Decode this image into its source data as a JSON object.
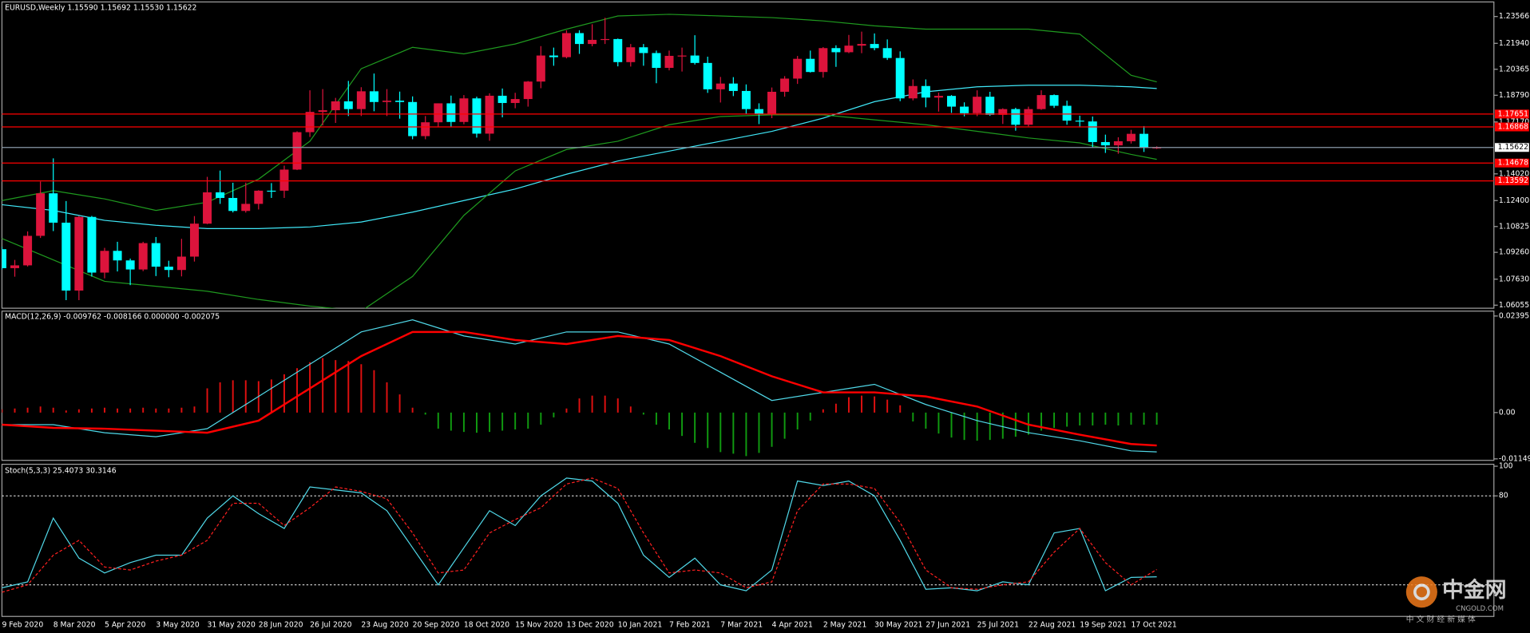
{
  "chart_data": [
    {
      "type": "candlestick",
      "title": "EURUSD,Weekly  1.15590 1.15692 1.15530 1.15622",
      "categories": [
        "9 Feb 2020",
        null,
        null,
        null,
        "8 Mar 2020",
        null,
        null,
        null,
        "5 Apr 2020",
        null,
        null,
        null,
        "3 May 2020",
        null,
        null,
        null,
        "31 May 2020",
        null,
        null,
        null,
        "28 Jun 2020",
        null,
        null,
        null,
        "26 Jul 2020",
        null,
        null,
        null,
        "23 Aug 2020",
        null,
        null,
        null,
        "20 Sep 2020",
        null,
        null,
        null,
        "18 Oct 2020",
        null,
        null,
        null,
        "15 Nov 2020",
        null,
        null,
        null,
        "13 Dec 2020",
        null,
        null,
        null,
        "10 Jan 2021",
        null,
        null,
        null,
        "7 Feb 2021",
        null,
        null,
        null,
        "7 Mar 2021",
        null,
        null,
        null,
        "4 Apr 2021",
        null,
        null,
        null,
        "2 May 2021",
        null,
        null,
        null,
        "30 May 2021",
        null,
        null,
        null,
        "27 Jun 2021",
        null,
        null,
        null,
        "25 Jul 2021",
        null,
        null,
        null,
        "22 Aug 2021",
        null,
        null,
        null,
        "19 Sep 2021",
        null,
        null,
        null,
        "17 Oct 2021",
        null,
        null
      ],
      "ohlc": [
        [
          1.0945,
          1.096,
          1.082,
          1.083
        ],
        [
          1.083,
          1.088,
          1.0778,
          1.0847
        ],
        [
          1.0847,
          1.1053,
          1.084,
          1.1026
        ],
        [
          1.1026,
          1.1355,
          1.1013,
          1.1284
        ],
        [
          1.1284,
          1.1496,
          1.1055,
          1.1106
        ],
        [
          1.1106,
          1.1237,
          1.0636,
          1.0694
        ],
        [
          1.0694,
          1.1147,
          1.0636,
          1.1141
        ],
        [
          1.1141,
          1.1147,
          1.0779,
          1.0803
        ],
        [
          1.0803,
          1.0953,
          1.0768,
          1.0935
        ],
        [
          1.0935,
          1.099,
          1.081,
          1.0877
        ],
        [
          1.0877,
          1.0888,
          1.0727,
          1.0822
        ],
        [
          1.0822,
          1.099,
          1.0812,
          1.0982
        ],
        [
          1.0982,
          1.1019,
          1.0782,
          1.0839
        ],
        [
          1.0839,
          1.0875,
          1.0775,
          1.0819
        ],
        [
          1.0819,
          1.1008,
          1.078,
          1.09
        ],
        [
          1.09,
          1.1146,
          1.087,
          1.11
        ],
        [
          1.11,
          1.1384,
          1.1097,
          1.129
        ],
        [
          1.129,
          1.1422,
          1.122,
          1.1256
        ],
        [
          1.1256,
          1.1348,
          1.1168,
          1.1177
        ],
        [
          1.1177,
          1.1349,
          1.1167,
          1.122
        ],
        [
          1.122,
          1.1303,
          1.1186,
          1.13
        ],
        [
          1.13,
          1.1346,
          1.1256,
          1.13
        ],
        [
          1.13,
          1.1452,
          1.1256,
          1.1428
        ],
        [
          1.1428,
          1.166,
          1.1425,
          1.1655
        ],
        [
          1.1655,
          1.1909,
          1.1626,
          1.1778
        ],
        [
          1.1778,
          1.1916,
          1.1696,
          1.1788
        ],
        [
          1.1788,
          1.1863,
          1.1711,
          1.1842
        ],
        [
          1.1842,
          1.1966,
          1.1753,
          1.1795
        ],
        [
          1.1795,
          1.1928,
          1.1753,
          1.1903
        ],
        [
          1.1903,
          1.2011,
          1.1782,
          1.1838
        ],
        [
          1.1838,
          1.1916,
          1.1753,
          1.1846
        ],
        [
          1.1846,
          1.1901,
          1.1737,
          1.1838
        ],
        [
          1.1838,
          1.1872,
          1.1612,
          1.1631
        ],
        [
          1.1631,
          1.1753,
          1.1612,
          1.1715
        ],
        [
          1.1715,
          1.183,
          1.1686,
          1.183
        ],
        [
          1.183,
          1.1877,
          1.1689,
          1.1717
        ],
        [
          1.1717,
          1.188,
          1.1703,
          1.186
        ],
        [
          1.186,
          1.187,
          1.1622,
          1.1646
        ],
        [
          1.1646,
          1.1891,
          1.1603,
          1.1876
        ],
        [
          1.1876,
          1.192,
          1.1745,
          1.1832
        ],
        [
          1.1832,
          1.1894,
          1.18,
          1.1856
        ],
        [
          1.1856,
          1.1965,
          1.181,
          1.1962
        ],
        [
          1.1962,
          1.2177,
          1.1922,
          1.212
        ],
        [
          1.212,
          1.2168,
          1.2058,
          1.211
        ],
        [
          1.211,
          1.2273,
          1.2103,
          1.2256
        ],
        [
          1.2256,
          1.2273,
          1.213,
          1.219
        ],
        [
          1.219,
          1.231,
          1.2176,
          1.2215
        ],
        [
          1.2215,
          1.2349,
          1.219,
          1.222
        ],
        [
          1.222,
          1.2223,
          1.2054,
          1.208
        ],
        [
          1.208,
          1.219,
          1.2053,
          1.217
        ],
        [
          1.217,
          1.219,
          1.2058,
          1.2135
        ],
        [
          1.2135,
          1.215,
          1.1952,
          1.2045
        ],
        [
          1.2045,
          1.215,
          1.203,
          1.2118
        ],
        [
          1.2118,
          1.2168,
          1.2023,
          1.212
        ],
        [
          1.212,
          1.2243,
          1.2065,
          1.2075
        ],
        [
          1.2075,
          1.2113,
          1.1893,
          1.1915
        ],
        [
          1.1915,
          1.199,
          1.1835,
          1.195
        ],
        [
          1.195,
          1.1989,
          1.1874,
          1.1905
        ],
        [
          1.1905,
          1.1945,
          1.1762,
          1.1795
        ],
        [
          1.1795,
          1.183,
          1.1704,
          1.1763
        ],
        [
          1.1763,
          1.1926,
          1.174,
          1.19
        ],
        [
          1.19,
          1.1995,
          1.187,
          1.198
        ],
        [
          1.198,
          1.2117,
          1.1948,
          1.21
        ],
        [
          1.21,
          1.215,
          1.2017,
          1.202
        ],
        [
          1.202,
          1.2171,
          1.1986,
          1.2165
        ],
        [
          1.2165,
          1.2182,
          1.2051,
          1.214
        ],
        [
          1.214,
          1.2245,
          1.2134,
          1.218
        ],
        [
          1.218,
          1.2265,
          1.2134,
          1.219
        ],
        [
          1.219,
          1.2254,
          1.2152,
          1.2165
        ],
        [
          1.2165,
          1.2218,
          1.2093,
          1.2105
        ],
        [
          1.2105,
          1.2145,
          1.1843,
          1.186
        ],
        [
          1.186,
          1.1975,
          1.1848,
          1.1935
        ],
        [
          1.1935,
          1.1975,
          1.1806,
          1.1865
        ],
        [
          1.1865,
          1.1895,
          1.178,
          1.1875
        ],
        [
          1.1875,
          1.188,
          1.1772,
          1.181
        ],
        [
          1.181,
          1.1836,
          1.1751,
          1.177
        ],
        [
          1.177,
          1.1909,
          1.1752,
          1.187
        ],
        [
          1.187,
          1.19,
          1.1754,
          1.176
        ],
        [
          1.176,
          1.18,
          1.1705,
          1.1795
        ],
        [
          1.1795,
          1.1803,
          1.1664,
          1.17
        ],
        [
          1.17,
          1.181,
          1.169,
          1.1795
        ],
        [
          1.1795,
          1.1909,
          1.179,
          1.188
        ],
        [
          1.188,
          1.1884,
          1.1802,
          1.1815
        ],
        [
          1.1815,
          1.1846,
          1.17,
          1.1725
        ],
        [
          1.1725,
          1.1755,
          1.1684,
          1.172
        ],
        [
          1.172,
          1.175,
          1.1563,
          1.1595
        ],
        [
          1.1595,
          1.164,
          1.1529,
          1.1575
        ],
        [
          1.1575,
          1.1624,
          1.1524,
          1.16
        ],
        [
          1.16,
          1.1669,
          1.1586,
          1.1645
        ],
        [
          1.1645,
          1.1692,
          1.1535,
          1.156
        ],
        [
          1.1559,
          1.15692,
          1.1553,
          1.15622
        ]
      ],
      "up_color": "#dc143c",
      "down_color": "#00ffff",
      "ylim": [
        1.0587,
        1.2445
      ],
      "yticks": [
        1.23566,
        {
          "value": 1.2194,
          "label": "1.21940"
        },
        1.20365,
        {
          "value": 1.1879,
          "label": "1.18790"
        },
        {
          "value": 1.1717,
          "label": "1.17170"
        },
        {
          "value": 1.1402,
          "label": "1.14020"
        },
        {
          "value": 1.124,
          "label": "1.12400"
        },
        1.10825,
        {
          "value": 1.0926,
          "label": "1.09260"
        },
        {
          "value": 1.0763,
          "label": "1.07630"
        },
        1.06055
      ],
      "levels": [
        1.17651,
        1.16868,
        1.14678,
        1.13592
      ],
      "level_color": "#ff0000",
      "current_price": 1.15622,
      "current_color": "#8a9aa8",
      "x": [
        0,
        4,
        8,
        12,
        16,
        20,
        24,
        28,
        32,
        36,
        40,
        44,
        48,
        52,
        56,
        60,
        64,
        68,
        72,
        76,
        80,
        84,
        88,
        90
      ],
      "lines": [
        {
          "color": "#40e8f8",
          "values": [
            1.1215,
            1.118,
            1.112,
            1.109,
            1.107,
            1.107,
            1.108,
            1.111,
            1.117,
            1.124,
            1.131,
            1.14,
            1.148,
            1.154,
            1.16,
            1.166,
            1.174,
            1.184,
            1.19,
            1.193,
            1.194,
            1.194,
            1.193,
            1.192
          ]
        },
        {
          "color": "#1f9a1f",
          "values": [
            1.124,
            1.13,
            1.125,
            1.118,
            1.123,
            1.137,
            1.16,
            1.204,
            1.217,
            1.213,
            1.219,
            1.228,
            1.236,
            1.237,
            1.236,
            1.235,
            1.233,
            1.23,
            1.228,
            1.228,
            1.228,
            1.225,
            1.2,
            1.196
          ]
        },
        {
          "color": "#1f9a1f",
          "values": [
            1.101,
            1.088,
            1.075,
            1.072,
            1.069,
            1.064,
            1.06,
            1.057,
            1.078,
            1.115,
            1.142,
            1.155,
            1.16,
            1.17,
            1.175,
            1.176,
            1.176,
            1.173,
            1.17,
            1.166,
            1.162,
            1.159,
            1.152,
            1.149
          ]
        }
      ]
    },
    {
      "type": "macd",
      "title": "MACD(12,26,9) -0.009762 -0.008166 0.000000 -0.002075",
      "ylim": [
        -0.01186,
        0.02516
      ],
      "yticks": [
        0.023952,
        {
          "value": 0,
          "label": "0.00"
        },
        -0.01149
      ],
      "histogram": [
        0.0008,
        0.001,
        0.0012,
        0.0015,
        0.0012,
        0.0005,
        0.0008,
        0.001,
        0.0012,
        0.001,
        0.001,
        0.0012,
        0.001,
        0.001,
        0.0012,
        0.0015,
        0.006,
        0.0075,
        0.008,
        0.008,
        0.0078,
        0.0082,
        0.0095,
        0.011,
        0.0125,
        0.0135,
        0.013,
        0.0128,
        0.012,
        0.0105,
        0.0075,
        0.0045,
        0.0012,
        -0.0005,
        -0.004,
        -0.0045,
        -0.0048,
        -0.005,
        -0.0048,
        -0.0045,
        -0.0042,
        -0.004,
        -0.003,
        -0.0012,
        0.001,
        0.0035,
        0.0042,
        0.0042,
        0.0035,
        0.0015,
        -0.0005,
        -0.003,
        -0.0042,
        -0.0058,
        -0.0075,
        -0.0088,
        -0.0098,
        -0.0102,
        -0.0108,
        -0.01,
        -0.0085,
        -0.0065,
        -0.0042,
        -0.002,
        0.0008,
        0.0022,
        0.0038,
        0.0042,
        0.004,
        0.0032,
        0.0018,
        -0.0022,
        -0.004,
        -0.0052,
        -0.0062,
        -0.0068,
        -0.007,
        -0.0068,
        -0.0065,
        -0.006,
        -0.0055,
        -0.0045,
        -0.0038,
        -0.0035,
        -0.0032,
        -0.0032,
        -0.003,
        -0.0032,
        -0.003,
        -0.003,
        -0.003
      ],
      "hist_up_color": "#e01010",
      "hist_down_color": "#109a10",
      "x": [
        0,
        4,
        8,
        12,
        16,
        20,
        24,
        28,
        32,
        36,
        40,
        44,
        48,
        52,
        56,
        60,
        64,
        68,
        72,
        76,
        80,
        84,
        88,
        90
      ],
      "lines": [
        {
          "color": "#50d8e8",
          "width": 1,
          "values": [
            -0.003,
            -0.003,
            -0.005,
            -0.006,
            -0.004,
            0.004,
            0.012,
            0.02,
            0.023,
            0.019,
            0.017,
            0.02,
            0.02,
            0.017,
            0.01,
            0.003,
            0.005,
            0.007,
            0.002,
            -0.002,
            -0.005,
            -0.007,
            -0.0095,
            -0.009762
          ]
        },
        {
          "color": "#ff0000",
          "width": 2,
          "values": [
            -0.003,
            -0.0038,
            -0.004,
            -0.0045,
            -0.005,
            -0.002,
            0.006,
            0.014,
            0.02,
            0.02,
            0.018,
            0.017,
            0.019,
            0.018,
            0.014,
            0.009,
            0.005,
            0.005,
            0.004,
            0.0015,
            -0.003,
            -0.0055,
            -0.0078,
            -0.008166
          ]
        }
      ]
    },
    {
      "type": "stochastic",
      "title": "Stoch(5,3,3) 25.4073 30.3146",
      "ylim": [
        0,
        100
      ],
      "yticks": [
        100,
        80
      ],
      "levels": [
        80,
        20
      ],
      "x": [
        0,
        2,
        4,
        6,
        8,
        10,
        12,
        14,
        16,
        18,
        20,
        22,
        24,
        26,
        28,
        30,
        32,
        34,
        36,
        38,
        40,
        42,
        44,
        46,
        48,
        50,
        52,
        54,
        56,
        58,
        60,
        62,
        64,
        66,
        68,
        70,
        72,
        74,
        76,
        78,
        80,
        82,
        84,
        86,
        88,
        90
      ],
      "lines": [
        {
          "color": "#50d8e8",
          "dashed": false,
          "values": [
            18,
            22,
            65,
            38,
            28,
            35,
            40,
            40,
            65,
            80,
            68,
            58,
            86,
            84,
            82,
            70,
            45,
            20,
            45,
            70,
            60,
            80,
            92,
            90,
            75,
            40,
            25,
            38,
            20,
            16,
            30,
            90,
            87,
            90,
            80,
            50,
            17,
            18,
            16,
            22,
            20,
            55,
            58,
            16,
            25,
            25.4073
          ]
        },
        {
          "color": "#ff2020",
          "dashed": true,
          "values": [
            15,
            20,
            40,
            50,
            32,
            30,
            36,
            40,
            50,
            75,
            75,
            60,
            72,
            86,
            83,
            78,
            55,
            28,
            30,
            55,
            64,
            72,
            88,
            92,
            85,
            55,
            28,
            30,
            28,
            18,
            22,
            70,
            88,
            88,
            85,
            62,
            30,
            18,
            17,
            20,
            22,
            42,
            58,
            35,
            20,
            30.3146
          ]
        }
      ]
    }
  ],
  "watermark": {
    "brand": "中金网",
    "site": "CNGOLD.COM",
    "slogan": "中 文 财 经 新 媒 体"
  }
}
